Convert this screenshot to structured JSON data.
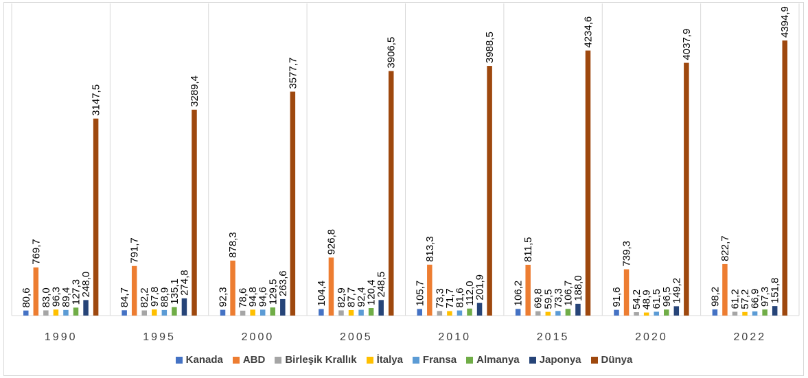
{
  "chart_data": {
    "type": "bar",
    "categories": [
      "1990",
      "1995",
      "2000",
      "2005",
      "2010",
      "2015",
      "2020",
      "2022"
    ],
    "series": [
      {
        "name": "Kanada",
        "color": "#4472c4",
        "values": [
          80.6,
          84.7,
          92.3,
          104.4,
          105.7,
          106.2,
          91.6,
          98.2
        ],
        "labels": [
          "80,6",
          "84,7",
          "92,3",
          "104,4",
          "105,7",
          "106,2",
          "91,6",
          "98,2"
        ]
      },
      {
        "name": "ABD",
        "color": "#ed7d31",
        "values": [
          769.7,
          791.7,
          878.3,
          926.8,
          813.3,
          811.5,
          739.3,
          822.7
        ],
        "labels": [
          "769,7",
          "791,7",
          "878,3",
          "926,8",
          "813,3",
          "811,5",
          "739,3",
          "822,7"
        ]
      },
      {
        "name": "Birleşik Krallık",
        "color": "#a5a5a5",
        "values": [
          83.0,
          82.2,
          78.6,
          82.9,
          73.3,
          69.8,
          54.2,
          61.2
        ],
        "labels": [
          "83,0",
          "82,2",
          "78,6",
          "82,9",
          "73,3",
          "69,8",
          "54,2",
          "61,2"
        ]
      },
      {
        "name": "İtalya",
        "color": "#ffc000",
        "values": [
          96.3,
          97.8,
          94.8,
          87.7,
          71.7,
          59.5,
          48.9,
          57.2
        ],
        "labels": [
          "96,3",
          "97,8",
          "94,8",
          "87,7",
          "71,7",
          "59,5",
          "48,9",
          "57,2"
        ]
      },
      {
        "name": "Fransa",
        "color": "#5b9bd5",
        "values": [
          89.4,
          88.9,
          94.6,
          92.4,
          81.6,
          73.3,
          61.5,
          66.9
        ],
        "labels": [
          "89,4",
          "88,9",
          "94,6",
          "92,4",
          "81,6",
          "73,3",
          "61,5",
          "66,9"
        ]
      },
      {
        "name": "Almanya",
        "color": "#70ad47",
        "values": [
          127.3,
          135.1,
          129.5,
          120.4,
          112.0,
          106.7,
          96.5,
          97.3
        ],
        "labels": [
          "127,3",
          "135,1",
          "129,5",
          "120,4",
          "112,0",
          "106,7",
          "96,5",
          "97,3"
        ]
      },
      {
        "name": "Japonya",
        "color": "#264478",
        "values": [
          248.0,
          274.8,
          263.6,
          248.5,
          201.9,
          188.0,
          149.2,
          151.8
        ],
        "labels": [
          "248,0",
          "274,8",
          "263,6",
          "248,5",
          "201,9",
          "188,0",
          "149,2",
          "151,8"
        ]
      },
      {
        "name": "Dünya",
        "color": "#9e480e",
        "values": [
          3147.5,
          3289.4,
          3577.7,
          3906.5,
          3988.5,
          4234.6,
          4037.9,
          4394.9
        ],
        "labels": [
          "3147,5",
          "3289,4",
          "3577,7",
          "3906,5",
          "3988,5",
          "4234,6",
          "4037,9",
          "4394,9"
        ]
      }
    ],
    "ylim": [
      0,
      5000
    ],
    "grid": false,
    "legend": "bottom"
  }
}
